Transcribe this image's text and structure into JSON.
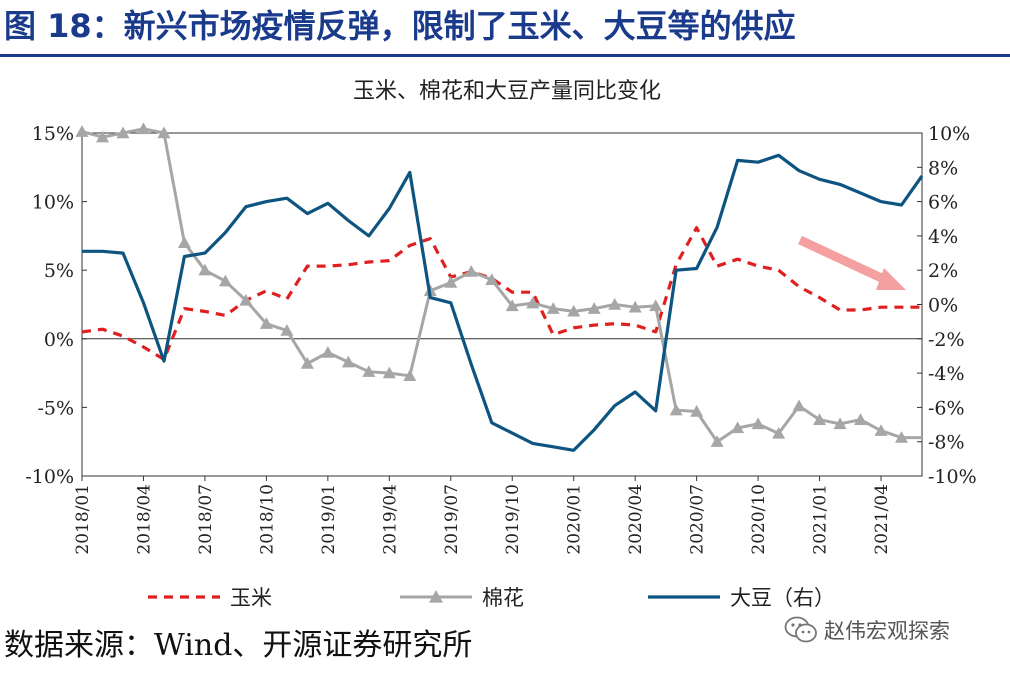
{
  "figure_title": "图 18：新兴市场疫情反弹，限制了玉米、大豆等的供应",
  "source_note": "数据来源：Wind、开源证券研究所",
  "watermark": {
    "text": "赵伟宏观探索",
    "icon": "wechat-icon"
  },
  "colors": {
    "title": "#1a3a8c",
    "corn": "#e02020",
    "cotton": "#a6a6a6",
    "soy": "#0d5480",
    "arrow": "#f4a0a0"
  },
  "chart_data": {
    "type": "line",
    "title": "玉米、棉花和大豆产量同比变化",
    "x_tick_labels": [
      "2018/01",
      "2018/04",
      "2018/07",
      "2018/10",
      "2019/01",
      "2019/04",
      "2019/07",
      "2019/10",
      "2020/01",
      "2020/04",
      "2020/07",
      "2020/10",
      "2021/01",
      "2021/04"
    ],
    "x_range": [
      "2018/01",
      "2021/06"
    ],
    "y_left": {
      "ticks": [
        "15%",
        "10%",
        "5%",
        "0%",
        "-5%",
        "-10%"
      ],
      "min": -10,
      "max": 15,
      "unit": "%"
    },
    "y_right": {
      "ticks": [
        "10%",
        "8%",
        "6%",
        "4%",
        "2%",
        "0%",
        "-2%",
        "-4%",
        "-6%",
        "-8%",
        "-10%"
      ],
      "min": -10,
      "max": 10,
      "unit": "%"
    },
    "legend_position": "bottom",
    "series": [
      {
        "name": "玉米",
        "axis": "left",
        "style": "dashed",
        "points": [
          [
            "2018/01",
            0.5
          ],
          [
            "2018/02",
            0.7
          ],
          [
            "2018/03",
            0.2
          ],
          [
            "2018/04",
            -0.6
          ],
          [
            "2018/05",
            -1.5
          ],
          [
            "2018/06",
            2.2
          ],
          [
            "2018/07",
            2.0
          ],
          [
            "2018/08",
            1.7
          ],
          [
            "2018/09",
            2.8
          ],
          [
            "2018/10",
            3.5
          ],
          [
            "2018/11",
            2.9
          ],
          [
            "2018/12",
            5.3
          ],
          [
            "2019/01",
            5.3
          ],
          [
            "2019/02",
            5.4
          ],
          [
            "2019/03",
            5.6
          ],
          [
            "2019/04",
            5.7
          ],
          [
            "2019/05",
            6.8
          ],
          [
            "2019/06",
            7.3
          ],
          [
            "2019/07",
            4.5
          ],
          [
            "2019/08",
            4.9
          ],
          [
            "2019/09",
            4.4
          ],
          [
            "2019/10",
            3.4
          ],
          [
            "2019/11",
            3.4
          ],
          [
            "2019/12",
            0.3
          ],
          [
            "2020/01",
            0.8
          ],
          [
            "2020/02",
            1.0
          ],
          [
            "2020/03",
            1.1
          ],
          [
            "2020/04",
            1.0
          ],
          [
            "2020/05",
            0.5
          ],
          [
            "2020/06",
            5.4
          ],
          [
            "2020/07",
            8.1
          ],
          [
            "2020/08",
            5.3
          ],
          [
            "2020/09",
            5.8
          ],
          [
            "2020/10",
            5.3
          ],
          [
            "2020/11",
            5.0
          ],
          [
            "2020/12",
            3.8
          ],
          [
            "2021/01",
            3.0
          ],
          [
            "2021/02",
            2.1
          ],
          [
            "2021/03",
            2.1
          ],
          [
            "2021/04",
            2.3
          ],
          [
            "2021/05",
            2.3
          ],
          [
            "2021/06",
            2.3
          ]
        ]
      },
      {
        "name": "棉花",
        "axis": "left",
        "style": "triangle-markers",
        "points": [
          [
            "2018/01",
            15.1
          ],
          [
            "2018/02",
            14.7
          ],
          [
            "2018/03",
            15.0
          ],
          [
            "2018/04",
            15.3
          ],
          [
            "2018/05",
            15.0
          ],
          [
            "2018/06",
            7.0
          ],
          [
            "2018/07",
            5.0
          ],
          [
            "2018/08",
            4.2
          ],
          [
            "2018/09",
            2.8
          ],
          [
            "2018/10",
            1.1
          ],
          [
            "2018/11",
            0.6
          ],
          [
            "2018/12",
            -1.8
          ],
          [
            "2019/01",
            -1.0
          ],
          [
            "2019/02",
            -1.7
          ],
          [
            "2019/03",
            -2.4
          ],
          [
            "2019/04",
            -2.5
          ],
          [
            "2019/05",
            -2.7
          ],
          [
            "2019/06",
            3.5
          ],
          [
            "2019/07",
            4.1
          ],
          [
            "2019/08",
            4.9
          ],
          [
            "2019/09",
            4.3
          ],
          [
            "2019/10",
            2.4
          ],
          [
            "2019/11",
            2.6
          ],
          [
            "2019/12",
            2.2
          ],
          [
            "2020/01",
            2.0
          ],
          [
            "2020/02",
            2.2
          ],
          [
            "2020/03",
            2.5
          ],
          [
            "2020/04",
            2.3
          ],
          [
            "2020/05",
            2.4
          ],
          [
            "2020/06",
            -5.2
          ],
          [
            "2020/07",
            -5.3
          ],
          [
            "2020/08",
            -7.5
          ],
          [
            "2020/09",
            -6.5
          ],
          [
            "2020/10",
            -6.2
          ],
          [
            "2020/11",
            -6.9
          ],
          [
            "2020/12",
            -4.9
          ],
          [
            "2021/01",
            -5.9
          ],
          [
            "2021/02",
            -6.2
          ],
          [
            "2021/03",
            -5.9
          ],
          [
            "2021/04",
            -6.7
          ],
          [
            "2021/05",
            -7.2
          ],
          [
            "2021/06",
            -7.2
          ]
        ]
      },
      {
        "name": "大豆（右）",
        "axis": "right",
        "style": "solid",
        "points": [
          [
            "2018/01",
            3.1
          ],
          [
            "2018/02",
            3.1
          ],
          [
            "2018/03",
            3.0
          ],
          [
            "2018/04",
            0.1
          ],
          [
            "2018/05",
            -3.3
          ],
          [
            "2018/06",
            2.8
          ],
          [
            "2018/07",
            3.0
          ],
          [
            "2018/08",
            4.2
          ],
          [
            "2018/09",
            5.7
          ],
          [
            "2018/10",
            6.0
          ],
          [
            "2018/11",
            6.2
          ],
          [
            "2018/12",
            5.3
          ],
          [
            "2019/01",
            5.9
          ],
          [
            "2019/02",
            4.9
          ],
          [
            "2019/03",
            4.0
          ],
          [
            "2019/04",
            5.6
          ],
          [
            "2019/05",
            7.7
          ],
          [
            "2019/06",
            0.4
          ],
          [
            "2019/07",
            0.1
          ],
          [
            "2019/08",
            -3.5
          ],
          [
            "2019/09",
            -6.9
          ],
          [
            "2019/10",
            -7.5
          ],
          [
            "2019/11",
            -8.1
          ],
          [
            "2019/12",
            -8.3
          ],
          [
            "2020/01",
            -8.5
          ],
          [
            "2020/02",
            -7.3
          ],
          [
            "2020/03",
            -5.9
          ],
          [
            "2020/04",
            -5.1
          ],
          [
            "2020/05",
            -6.2
          ],
          [
            "2020/06",
            2.0
          ],
          [
            "2020/07",
            2.1
          ],
          [
            "2020/08",
            4.5
          ],
          [
            "2020/09",
            8.4
          ],
          [
            "2020/10",
            8.3
          ],
          [
            "2020/11",
            8.7
          ],
          [
            "2020/12",
            7.8
          ],
          [
            "2021/01",
            7.3
          ],
          [
            "2021/02",
            7.0
          ],
          [
            "2021/03",
            6.5
          ],
          [
            "2021/04",
            6.0
          ],
          [
            "2021/05",
            5.8
          ],
          [
            "2021/06",
            7.5
          ]
        ]
      }
    ]
  }
}
